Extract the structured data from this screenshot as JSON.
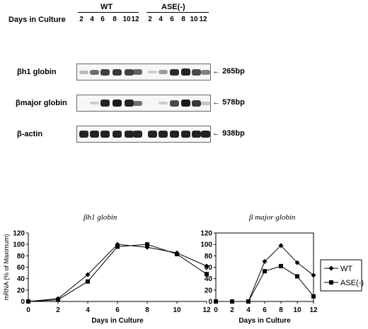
{
  "header": {
    "group_wt": "WT",
    "group_ase": "ASE(-)",
    "days_label": "Days in Culture",
    "lanes_wt": [
      "2",
      "4",
      "6",
      "8",
      "10",
      "12"
    ],
    "lanes_ase": [
      "2",
      "4",
      "6",
      "8",
      "10",
      "12"
    ]
  },
  "gels": [
    {
      "label": "βh1 globin",
      "size": "265bp",
      "band_intensity": [
        0.15,
        0.55,
        0.8,
        0.85,
        0.8,
        0.6,
        0.05,
        0.3,
        0.9,
        0.95,
        0.75,
        0.45
      ]
    },
    {
      "label": "βmajor globin",
      "size": "578bp",
      "band_intensity": [
        0.0,
        0.05,
        0.95,
        1.0,
        0.95,
        0.55,
        0.0,
        0.05,
        0.75,
        1.0,
        0.85,
        0.1
      ]
    },
    {
      "label": "β-actin",
      "size": "938bp",
      "band_intensity": [
        0.95,
        0.95,
        0.95,
        0.95,
        0.95,
        0.95,
        0.95,
        0.95,
        0.95,
        0.95,
        0.95,
        0.95
      ]
    }
  ],
  "chart_data": [
    {
      "type": "line",
      "title": "βh1 globin",
      "xlabel": "Days in Culture",
      "ylabel": "mRNA (% of Maximum)",
      "x": [
        0,
        2,
        4,
        6,
        8,
        10,
        12
      ],
      "xlim": [
        0,
        12
      ],
      "ylim": [
        0,
        120
      ],
      "yticks": [
        0,
        20,
        40,
        60,
        80,
        100,
        120
      ],
      "series": [
        {
          "name": "WT",
          "marker": "diamond",
          "values": [
            0,
            5,
            47,
            100,
            95,
            85,
            62
          ]
        },
        {
          "name": "ASE(-)",
          "marker": "square",
          "values": [
            0,
            3,
            35,
            96,
            100,
            83,
            48
          ]
        }
      ]
    },
    {
      "type": "line",
      "title": "β major globin",
      "xlabel": "Days in Culture",
      "ylabel": "",
      "x": [
        0,
        2,
        4,
        6,
        8,
        10,
        12
      ],
      "xlim": [
        0,
        12
      ],
      "ylim": [
        0,
        120
      ],
      "yticks": [
        0,
        20,
        40,
        60,
        80,
        100,
        120
      ],
      "legend_position": "right",
      "series": [
        {
          "name": "WT",
          "marker": "diamond",
          "values": [
            0,
            0,
            0,
            70,
            98,
            68,
            46
          ]
        },
        {
          "name": "ASE(-)",
          "marker": "square",
          "values": [
            0,
            0,
            0,
            53,
            62,
            44,
            9
          ]
        }
      ]
    }
  ]
}
